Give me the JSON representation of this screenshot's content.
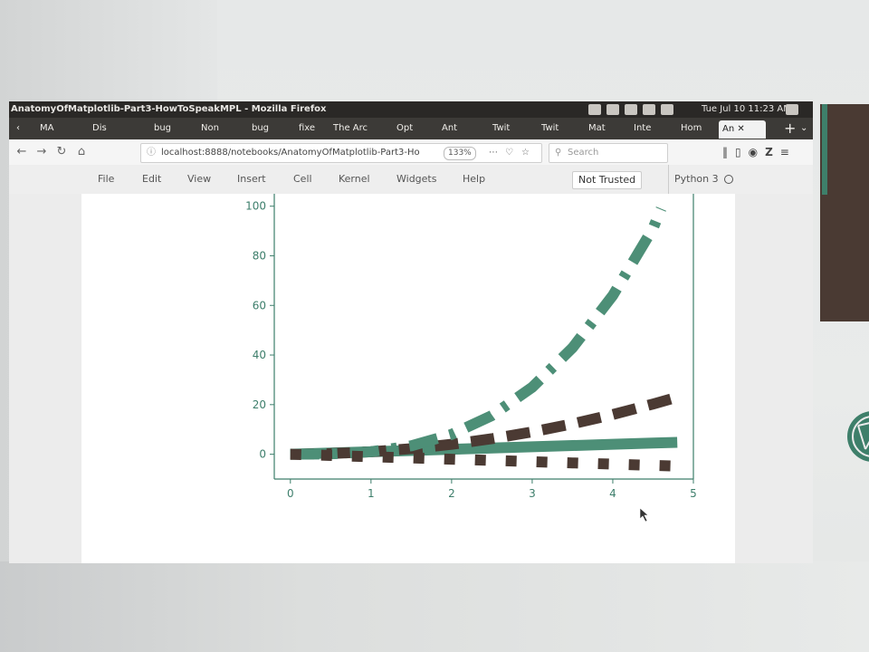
{
  "window": {
    "title": "AnatomyOfMatplotlib-Part3-HowToSpeakMPL - Mozilla Firefox",
    "clock": "Tue Jul 10 11:23 AM"
  },
  "tabs": [
    {
      "label": "MA"
    },
    {
      "label": "Dis"
    },
    {
      "label": "bug"
    },
    {
      "label": "Non"
    },
    {
      "label": "bug"
    },
    {
      "label": "fixe"
    },
    {
      "label": "The Arc"
    },
    {
      "label": "Opt"
    },
    {
      "label": "Ant"
    },
    {
      "label": "Twit"
    },
    {
      "label": "Twit"
    },
    {
      "label": "Mat"
    },
    {
      "label": "Inte"
    },
    {
      "label": "Hom"
    },
    {
      "label": "An"
    }
  ],
  "toolbar": {
    "url": "localhost:8888/notebooks/AnatomyOfMatplotlib-Part3-Ho",
    "zoom": "133%",
    "search_placeholder": "Search"
  },
  "notebook_menu": {
    "items": [
      "File",
      "Edit",
      "View",
      "Insert",
      "Cell",
      "Kernel",
      "Widgets",
      "Help"
    ],
    "trusted": "Not Trusted",
    "kernel": "Python 3"
  },
  "colors": {
    "green": "#4d8f77",
    "brown": "#4b3a33",
    "axis": "#3d7e6b",
    "desktop_dark": "#4a3a33"
  },
  "chart_data": {
    "type": "line",
    "title": "",
    "xlabel": "",
    "ylabel": "",
    "xlim": [
      -0.2,
      5.0
    ],
    "ylim": [
      -10,
      105
    ],
    "xticks": [
      0,
      1,
      2,
      3,
      4,
      5
    ],
    "yticks": [
      0,
      20,
      40,
      60,
      80,
      100
    ],
    "grid": false,
    "series": [
      {
        "style": "solid",
        "color": "#4d8f77",
        "x": [
          0,
          0.5,
          1,
          1.5,
          2,
          2.5,
          3,
          3.5,
          4,
          4.5,
          4.8
        ],
        "y": [
          0,
          0.5,
          1,
          1.5,
          2,
          2.5,
          3,
          3.5,
          4,
          4.5,
          4.8
        ]
      },
      {
        "style": "dashed",
        "color": "#4b3a33",
        "x": [
          0,
          0.5,
          1,
          1.5,
          2,
          2.5,
          3,
          3.5,
          4,
          4.5,
          4.8
        ],
        "y": [
          0,
          0.25,
          1,
          2.25,
          4,
          6.25,
          9,
          12.25,
          16,
          20.25,
          23
        ]
      },
      {
        "style": "dashdot",
        "color": "#4d8f77",
        "x": [
          0,
          0.5,
          1,
          1.5,
          2,
          2.5,
          3,
          3.5,
          4,
          4.5,
          4.6
        ],
        "y": [
          0,
          0.13,
          1,
          3.4,
          8,
          15.6,
          27,
          42.9,
          64,
          91.1,
          99
        ]
      },
      {
        "style": "dotted",
        "color": "#4b3a33",
        "x": [
          0,
          0.5,
          1,
          1.5,
          2,
          2.5,
          3,
          3.5,
          4,
          4.5,
          4.8
        ],
        "y": [
          0,
          -0.5,
          -1,
          -1.5,
          -2,
          -2.5,
          -3,
          -3.5,
          -4,
          -4.5,
          -4.8
        ]
      }
    ]
  }
}
